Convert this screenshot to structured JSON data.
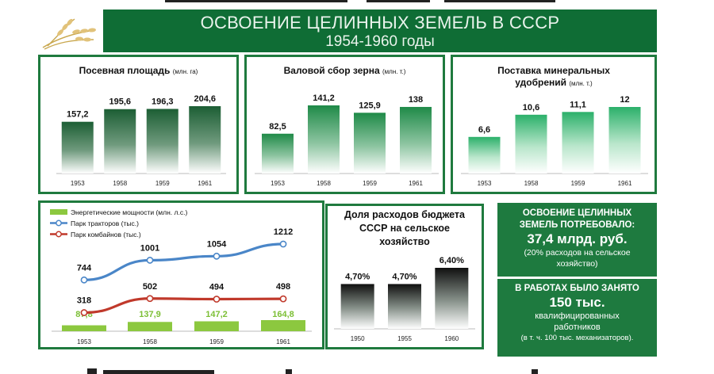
{
  "banner": {
    "title": "ОСВОЕНИЕ ЦЕЛИННЫХ ЗЕМЕЛЬ В СССР",
    "subtitle": "1954-1960 годы"
  },
  "colors": {
    "banner": "#0f6d35",
    "border": "#1f7a3e",
    "bar_dark": "#1c5e34",
    "bar_light": "#2bb06a",
    "energy_bar": "#8cc83f",
    "tractors_line": "#4a86c8",
    "combines_line": "#c0392b",
    "info_box": "#1e7a3f"
  },
  "chart_data": [
    {
      "type": "bar",
      "title": "Посевная площадь",
      "unit": "(млн. га)",
      "categories": [
        "1953",
        "1958",
        "1959",
        "1961"
      ],
      "values": [
        157.2,
        195.6,
        196.3,
        204.6
      ],
      "value_labels": [
        "157,2",
        "195,6",
        "196,3",
        "204,6"
      ],
      "style": "dark"
    },
    {
      "type": "bar",
      "title": "Валовой сбор зерна",
      "unit": "(млн. т.)",
      "categories": [
        "1953",
        "1958",
        "1959",
        "1961"
      ],
      "values": [
        82.5,
        141.2,
        125.9,
        138
      ],
      "value_labels": [
        "82,5",
        "141,2",
        "125,9",
        "138"
      ],
      "style": "mid"
    },
    {
      "type": "bar",
      "title": "Поставка минеральных удобрений",
      "unit": "(млн. т.)",
      "categories": [
        "1953",
        "1958",
        "1959",
        "1961"
      ],
      "values": [
        6.6,
        10.6,
        11.1,
        12
      ],
      "value_labels": [
        "6,6",
        "10,6",
        "11,1",
        "12"
      ],
      "style": "light"
    },
    {
      "type": "line",
      "categories": [
        "1953",
        "1958",
        "1959",
        "1961"
      ],
      "series": [
        {
          "name": "Энергетические мощности (млн. л.с.)",
          "kind": "bar",
          "values": [
            87.8,
            137.9,
            147.2,
            164.8
          ],
          "value_labels": [
            "87,8",
            "137,9",
            "147,2",
            "164,8"
          ]
        },
        {
          "name": "Парк тракторов (тыс.)",
          "kind": "line",
          "values": [
            744,
            1001,
            1054,
            1212
          ],
          "value_labels": [
            "744",
            "1001",
            "1054",
            "1212"
          ]
        },
        {
          "name": "Парк комбайнов (тыс.)",
          "kind": "line",
          "values": [
            318,
            502,
            494,
            498
          ],
          "value_labels": [
            "318",
            "502",
            "494",
            "498"
          ]
        }
      ]
    },
    {
      "type": "bar",
      "title": "Доля расходов бюджета СССР на сельское хозяйство",
      "categories": [
        "1950",
        "1955",
        "1960"
      ],
      "values": [
        4.7,
        4.7,
        6.4
      ],
      "value_labels": [
        "4,70%",
        "4,70%",
        "6,40%"
      ],
      "style": "black"
    }
  ],
  "info1": {
    "line1": "ОСВОЕНИЕ ЦЕЛИННЫХ",
    "line2": "ЗЕМЕЛЬ ПОТРЕБОВАЛО:",
    "amount": "37,4 млрд. руб.",
    "note1": "(20% расходов на сельское",
    "note2": "хозяйство)"
  },
  "info2": {
    "line1": "В РАБОТАХ БЫЛО ЗАНЯТО",
    "amount": "150 тыс.",
    "note1": "квалифицированных",
    "note2": "работников",
    "note3": "(в т. ч. 100 тыс. механизаторов)."
  }
}
